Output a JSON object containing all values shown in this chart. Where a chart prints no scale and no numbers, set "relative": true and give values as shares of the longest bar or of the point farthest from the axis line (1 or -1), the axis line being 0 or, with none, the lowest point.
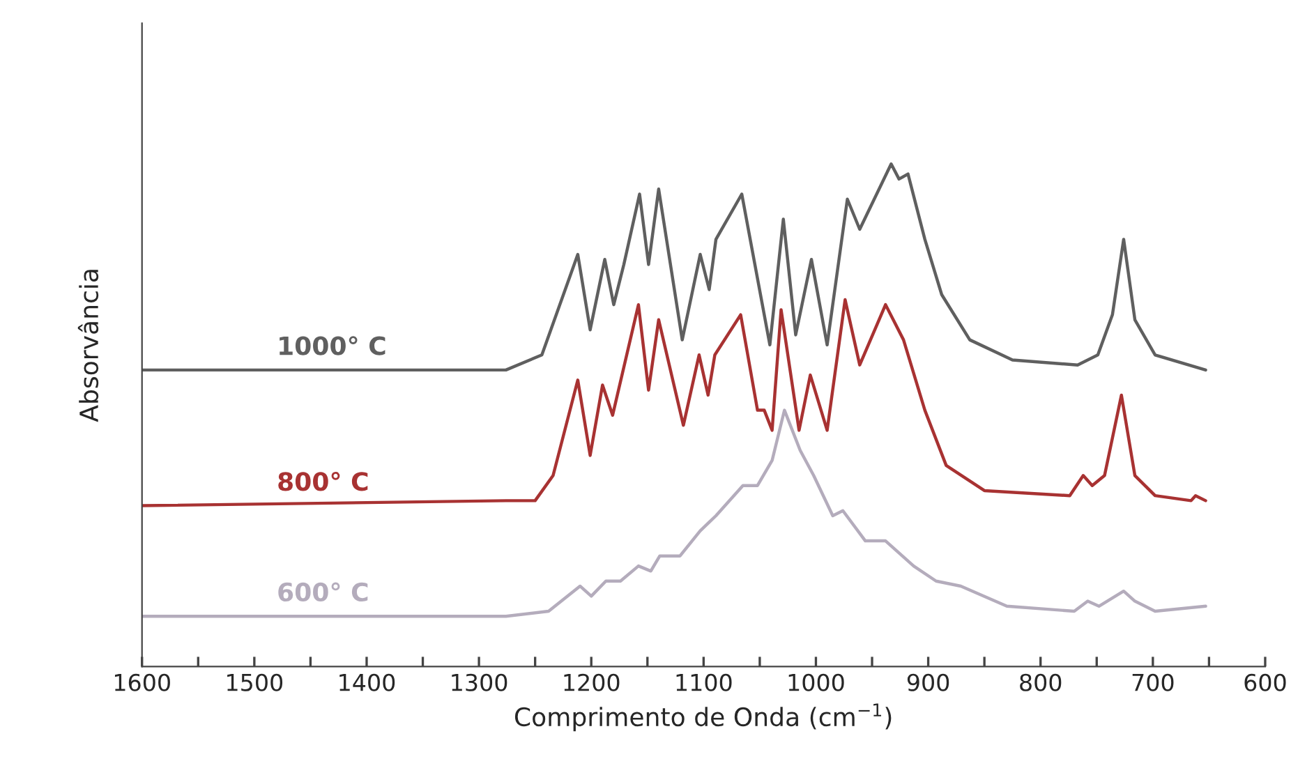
{
  "chart_data": {
    "type": "line",
    "relative": true,
    "xlabel": "Comprimento de Onda (cm$^{−1}$)",
    "ylabel": "Absorvância",
    "xlim": [
      1600,
      600
    ],
    "xticks": [
      1600,
      {
        "value": 1550,
        "label": null
      },
      1500,
      {
        "value": 1450,
        "label": null
      },
      1400,
      {
        "value": 1350,
        "label": null
      },
      1300,
      {
        "value": 1250,
        "label": null
      },
      1200,
      {
        "value": 1150,
        "label": null
      },
      1100,
      {
        "value": 1050,
        "label": null
      },
      1000,
      {
        "value": 950,
        "label": null
      },
      900,
      {
        "value": 850,
        "label": null
      },
      800,
      {
        "value": 750,
        "label": null
      },
      700,
      {
        "value": 650,
        "label": null
      },
      600
    ],
    "grid": false,
    "legend": false,
    "marker": "none",
    "line_style": "solid",
    "series": [
      {
        "name": "1000° C",
        "color": "#5f5f5f",
        "x": [
          1600,
          1276,
          1244,
          1212,
          1201,
          1188,
          1180,
          1171,
          1157,
          1149,
          1140,
          1119,
          1103,
          1095,
          1089,
          1066,
          1041,
          1029,
          1018,
          1004,
          990,
          972,
          961,
          933,
          926,
          918,
          903,
          888,
          863,
          825,
          767,
          749,
          736,
          726,
          716,
          698,
          653
        ],
        "values": [
          0.59,
          0.59,
          0.62,
          0.82,
          0.67,
          0.81,
          0.72,
          0.8,
          0.94,
          0.8,
          0.95,
          0.65,
          0.82,
          0.75,
          0.85,
          0.94,
          0.64,
          0.89,
          0.66,
          0.81,
          0.64,
          0.93,
          0.87,
          1.0,
          0.97,
          0.98,
          0.85,
          0.74,
          0.65,
          0.61,
          0.6,
          0.62,
          0.7,
          0.85,
          0.69,
          0.62,
          0.59
        ]
      },
      {
        "name": "800° C",
        "color": "#a83232",
        "x": [
          1600,
          1276,
          1250,
          1234,
          1212,
          1201,
          1190,
          1181,
          1158,
          1149,
          1140,
          1118,
          1104,
          1096,
          1090,
          1067,
          1052,
          1046,
          1039,
          1031,
          1015,
          1005,
          990,
          974,
          961,
          938,
          922,
          903,
          884,
          850,
          774,
          762,
          754,
          743,
          728,
          716,
          698,
          666,
          662,
          653
        ],
        "values": [
          0.32,
          0.33,
          0.33,
          0.38,
          0.57,
          0.42,
          0.56,
          0.5,
          0.72,
          0.55,
          0.69,
          0.48,
          0.62,
          0.54,
          0.62,
          0.7,
          0.51,
          0.51,
          0.47,
          0.71,
          0.47,
          0.58,
          0.47,
          0.73,
          0.6,
          0.72,
          0.65,
          0.51,
          0.4,
          0.35,
          0.34,
          0.38,
          0.36,
          0.38,
          0.54,
          0.38,
          0.34,
          0.33,
          0.34,
          0.33
        ]
      },
      {
        "name": "600° C",
        "color": "#b4acbc",
        "x": [
          1600,
          1276,
          1238,
          1210,
          1200,
          1187,
          1174,
          1158,
          1147,
          1139,
          1121,
          1103,
          1089,
          1065,
          1052,
          1039,
          1028,
          1014,
          1002,
          985,
          976,
          956,
          938,
          913,
          893,
          871,
          830,
          770,
          758,
          748,
          726,
          716,
          698,
          653
        ],
        "values": [
          0.1,
          0.1,
          0.11,
          0.16,
          0.14,
          0.17,
          0.17,
          0.2,
          0.19,
          0.22,
          0.22,
          0.27,
          0.3,
          0.36,
          0.36,
          0.41,
          0.51,
          0.43,
          0.38,
          0.3,
          0.31,
          0.25,
          0.25,
          0.2,
          0.17,
          0.16,
          0.12,
          0.11,
          0.13,
          0.12,
          0.15,
          0.13,
          0.11,
          0.12
        ]
      }
    ]
  }
}
